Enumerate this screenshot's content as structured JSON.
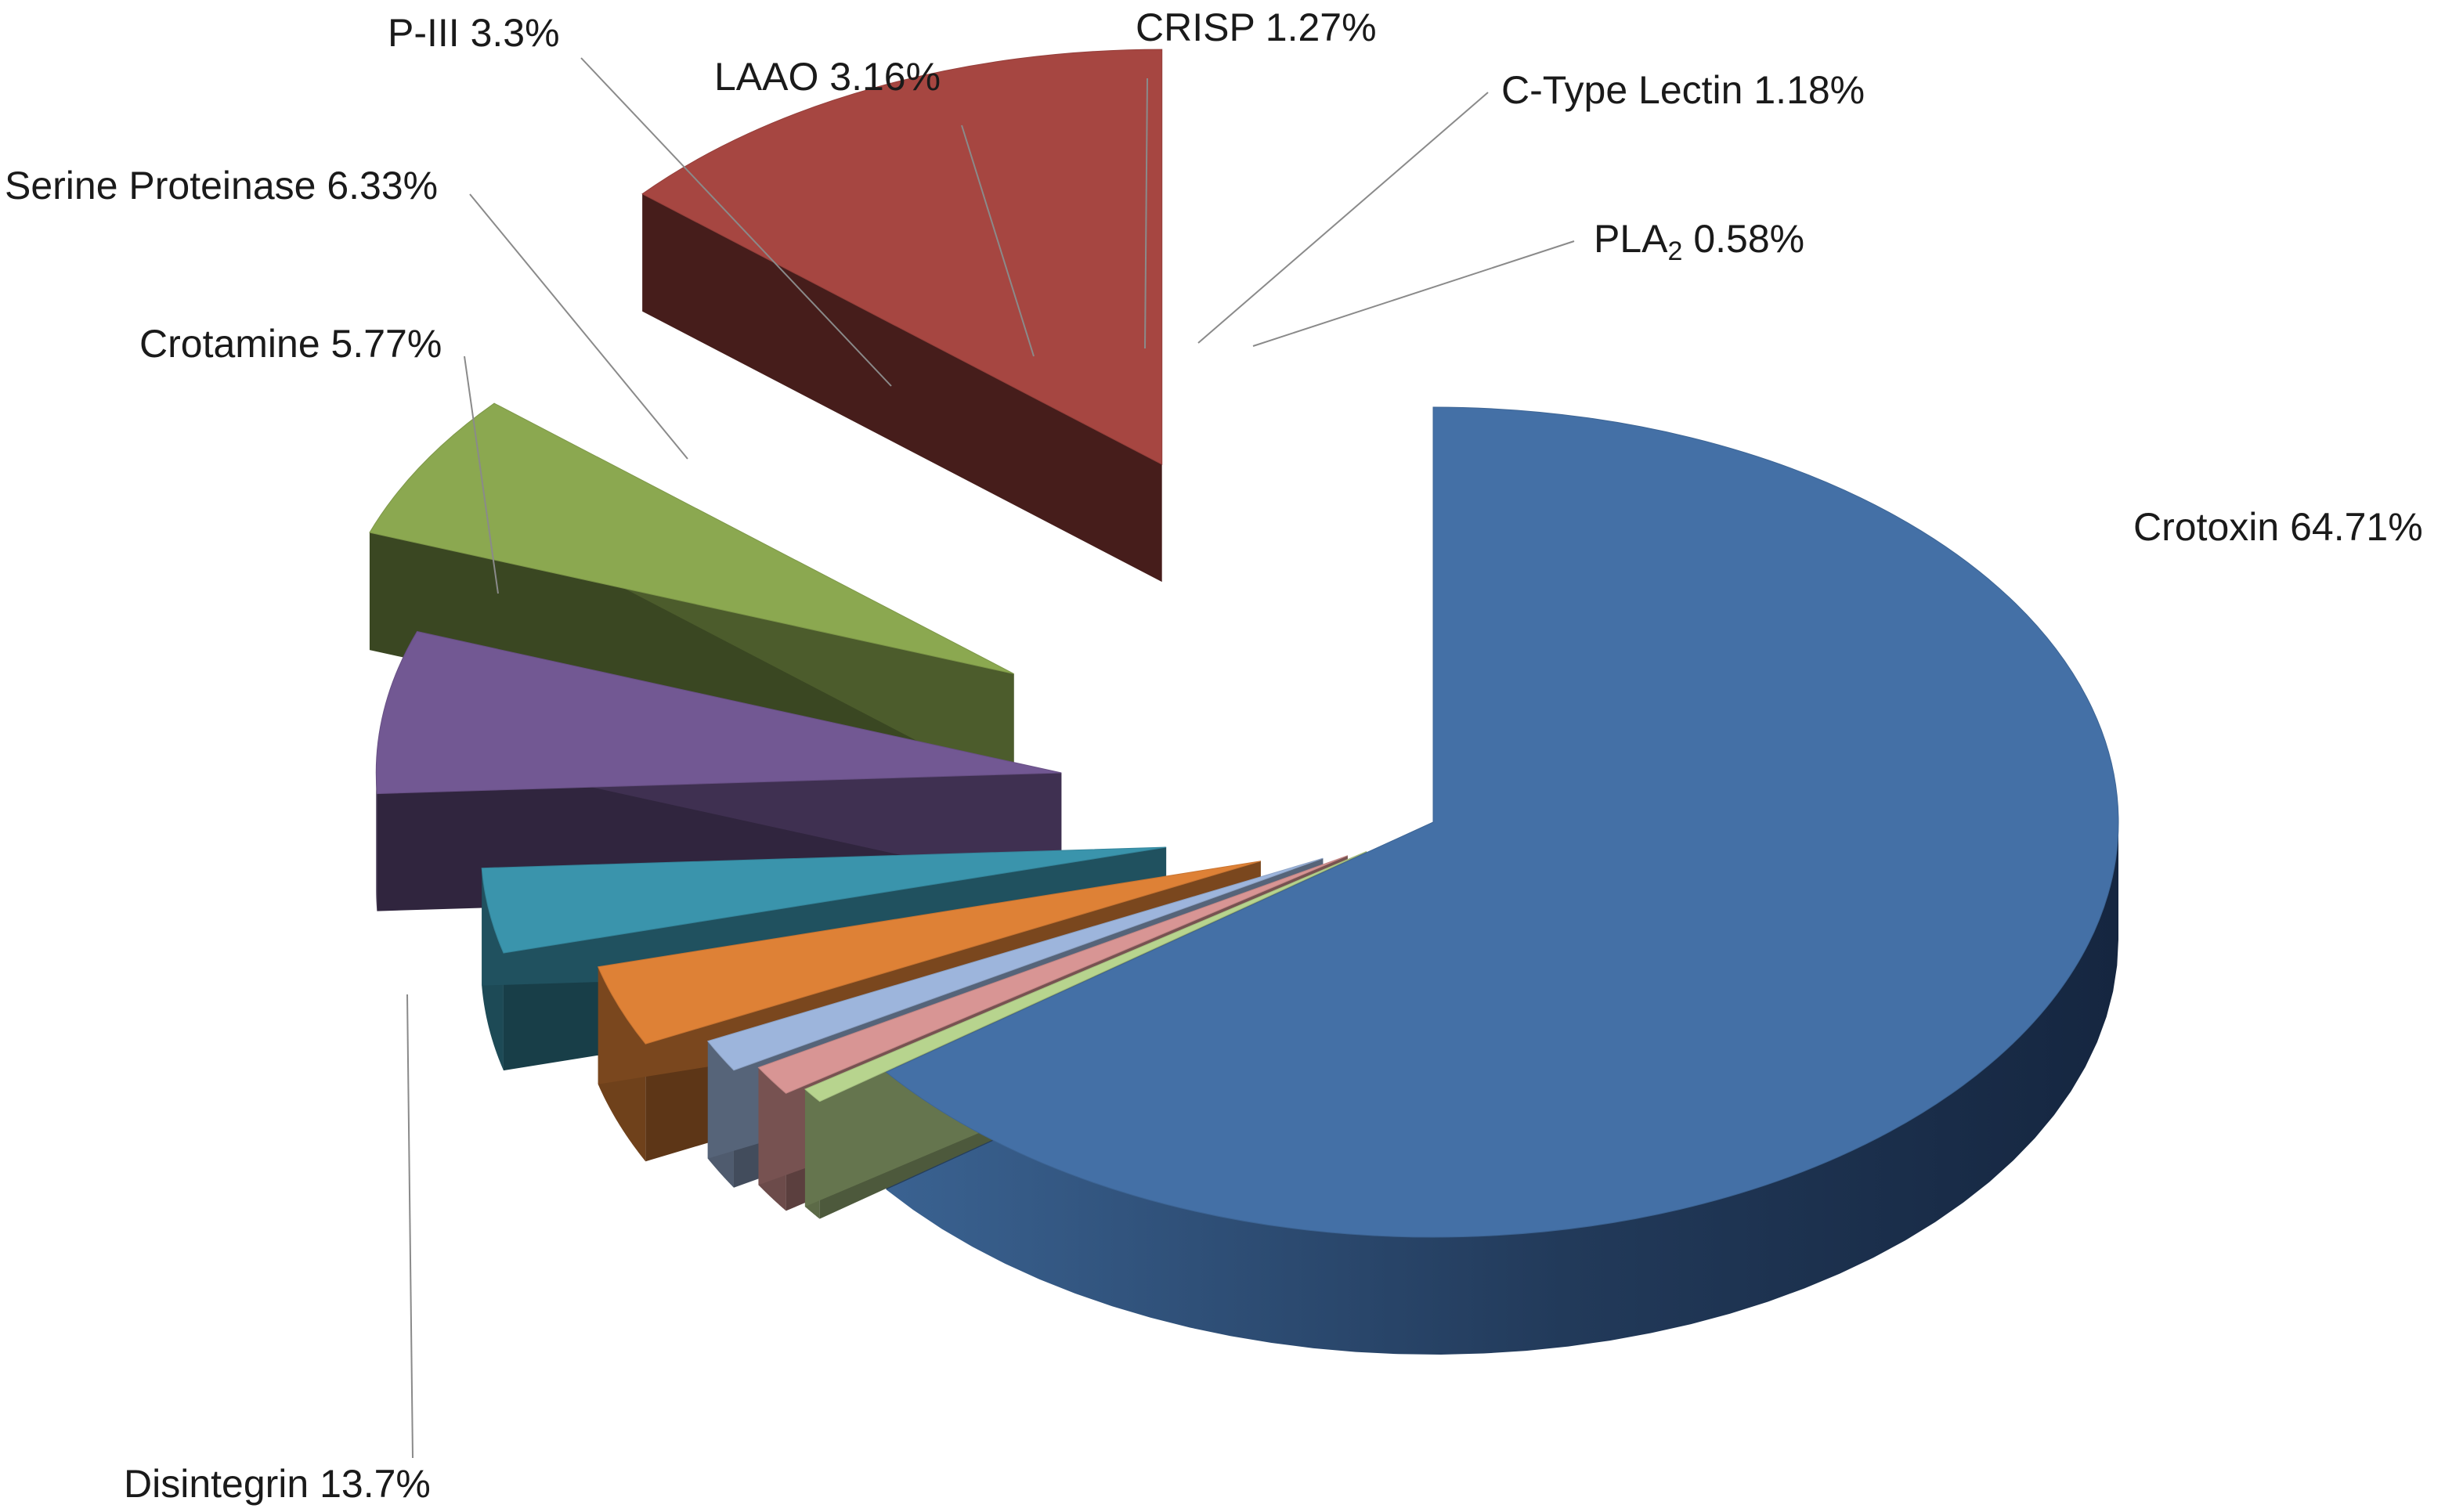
{
  "chart_data": {
    "type": "pie",
    "three_d": true,
    "exploded": true,
    "legend": "none",
    "title": "",
    "slices": [
      {
        "name": "Crotoxin",
        "value": 64.71,
        "label": "Crotoxin 64.71%",
        "color": "#4470A6"
      },
      {
        "name": "PLA2",
        "value": 0.58,
        "label_main": "PLA",
        "label_sub": "2",
        "label_value": " 0.58%",
        "color": "#B7D48E"
      },
      {
        "name": "C-Type Lectin",
        "value": 1.18,
        "label": "C-Type Lectin 1.18%",
        "color": "#D89594"
      },
      {
        "name": "CRISP",
        "value": 1.27,
        "label": "CRISP 1.27%",
        "color": "#9DB5DC"
      },
      {
        "name": "LAAO",
        "value": 3.16,
        "label": "LAAO 3.16%",
        "color": "#DE8136"
      },
      {
        "name": "P-III",
        "value": 3.3,
        "label": "P-III 3.3%",
        "color": "#3A94AC"
      },
      {
        "name": "Serine Proteinase",
        "value": 6.33,
        "label": "Serine Proteinase 6.33%",
        "color": "#725893"
      },
      {
        "name": "Crotamine",
        "value": 5.77,
        "label": "Crotamine 5.77%",
        "color": "#8BA850"
      },
      {
        "name": "Disintegrin",
        "value": 13.7,
        "label": "Disintegrin 13.7%",
        "color": "#A64641"
      }
    ]
  }
}
